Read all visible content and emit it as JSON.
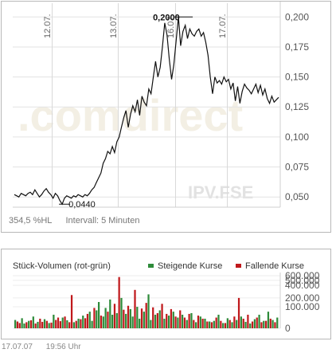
{
  "chart_data": [
    {
      "type": "line",
      "title": "",
      "xlabel": "",
      "ylabel": "",
      "x_tick_labels": [
        "12.07.",
        "13.07.",
        "16.07.",
        "17.07."
      ],
      "y_tick_labels": [
        "0,200",
        "0,175",
        "0,150",
        "0,125",
        "0,100",
        "0,075",
        "0,050"
      ],
      "y_ticks": [
        0.2,
        0.175,
        0.15,
        0.125,
        0.1,
        0.075,
        0.05
      ],
      "ylim": [
        0.0415,
        0.2075
      ],
      "grid": true,
      "series": [
        {
          "values": [
            0.052,
            0.051,
            0.05,
            0.053,
            0.052,
            0.051,
            0.053,
            0.054,
            0.052,
            0.056,
            0.053,
            0.05,
            0.052,
            0.055,
            0.057,
            0.054,
            0.052,
            0.049,
            0.053,
            0.051,
            0.047,
            0.044,
            0.049,
            0.051,
            0.05,
            0.049,
            0.051,
            0.05,
            0.052,
            0.051,
            0.05,
            0.052,
            0.051,
            0.053,
            0.056,
            0.058,
            0.062,
            0.066,
            0.07,
            0.078,
            0.082,
            0.088,
            0.086,
            0.092,
            0.087,
            0.096,
            0.1,
            0.108,
            0.116,
            0.122,
            0.108,
            0.119,
            0.126,
            0.121,
            0.131,
            0.118,
            0.134,
            0.129,
            0.126,
            0.14,
            0.136,
            0.15,
            0.163,
            0.15,
            0.158,
            0.175,
            0.195,
            0.185,
            0.165,
            0.148,
            0.16,
            0.18,
            0.2,
            0.176,
            0.188,
            0.193,
            0.182,
            0.19,
            0.186,
            0.184,
            0.188,
            0.19,
            0.184,
            0.187,
            0.179,
            0.168,
            0.15,
            0.136,
            0.15,
            0.145,
            0.147,
            0.144,
            0.15,
            0.146,
            0.148,
            0.14,
            0.145,
            0.13,
            0.142,
            0.128,
            0.138,
            0.144,
            0.141,
            0.139,
            0.136,
            0.14,
            0.144,
            0.137,
            0.143,
            0.135,
            0.14,
            0.132,
            0.128,
            0.134,
            0.129,
            0.131,
            0.133
          ],
          "high_label": "0,2000",
          "low_label": "0,0440"
        }
      ],
      "watermark": ".comdirect",
      "exchange_label": "IPV.FSE",
      "performance_label": "354,5 %HL",
      "interval_label": "Intervall: 5 Minuten",
      "line_color": "#111111"
    },
    {
      "type": "bar",
      "title": "Stück-Volumen (rot-grün)",
      "legend": [
        {
          "name": "Steigende Kurse",
          "color": "#2e8b3a"
        },
        {
          "name": "Fallende Kurse",
          "color": "#c0191c"
        }
      ],
      "y_tick_labels": [
        "600.000",
        "500.000",
        "400.000",
        "200.000",
        "100.000",
        "0"
      ],
      "y_ticks": [
        600000,
        500000,
        400000,
        200000,
        100000,
        0
      ],
      "ylim": [
        0,
        600000
      ],
      "scale": "sqrt",
      "series": [
        {
          "name": "Steigende Kurse",
          "values": [
            15000,
            8000,
            0,
            22000,
            5000,
            0,
            12000,
            0,
            30000,
            0,
            9000,
            0,
            0,
            18000,
            0,
            6000,
            0,
            40000,
            0,
            0,
            0,
            25000,
            0,
            14000,
            0,
            0,
            8000,
            0,
            20000,
            0,
            35000,
            0,
            0,
            60000,
            12000,
            0,
            70000,
            150000,
            0,
            30000,
            90000,
            0,
            180000,
            40000,
            0,
            50000,
            0,
            200000,
            0,
            45000,
            0,
            80000,
            30000,
            0,
            100000,
            20000,
            0,
            60000,
            0,
            250000,
            15000,
            0,
            40000,
            0,
            70000,
            0,
            20000,
            0,
            35000,
            0,
            60000,
            0,
            25000,
            0,
            40000,
            0,
            15000,
            0,
            50000,
            0,
            8000,
            0,
            30000,
            0,
            20000,
            0,
            10000,
            0,
            12000,
            0,
            40000,
            0,
            6000,
            0,
            22000,
            0,
            8000,
            0,
            15000,
            0,
            30000,
            0,
            9000,
            0,
            5000,
            0,
            18000,
            0,
            40000,
            0,
            12000,
            0,
            60000,
            0,
            15000,
            0,
            25000
          ]
        },
        {
          "name": "Fallende Kurse",
          "values": [
            0,
            10000,
            6000,
            0,
            0,
            8000,
            0,
            14000,
            0,
            5000,
            0,
            20000,
            9000,
            0,
            12000,
            0,
            7000,
            0,
            15000,
            25000,
            11000,
            0,
            30000,
            0,
            8000,
            240000,
            0,
            12000,
            0,
            18000,
            0,
            22000,
            45000,
            0,
            0,
            90000,
            0,
            0,
            35000,
            0,
            0,
            60000,
            0,
            0,
            130000,
            0,
            570000,
            0,
            75000,
            0,
            110000,
            0,
            0,
            320000,
            0,
            0,
            85000,
            0,
            140000,
            0,
            0,
            95000,
            0,
            50000,
            0,
            130000,
            0,
            45000,
            0,
            80000,
            0,
            30000,
            0,
            70000,
            0,
            25000,
            0,
            45000,
            0,
            15000,
            0,
            35000,
            0,
            20000,
            0,
            10000,
            0,
            8000,
            0,
            25000,
            0,
            12000,
            0,
            6000,
            0,
            15000,
            0,
            30000,
            0,
            200000,
            0,
            20000,
            0,
            40000,
            0,
            10000,
            0,
            25000,
            0,
            8000,
            0,
            12000,
            0,
            20000,
            0,
            8000,
            0,
            15000,
            0,
            10000,
            0
          ]
        }
      ]
    }
  ],
  "footer": {
    "date": "17.07.07",
    "time": "19:56 Uhr"
  }
}
